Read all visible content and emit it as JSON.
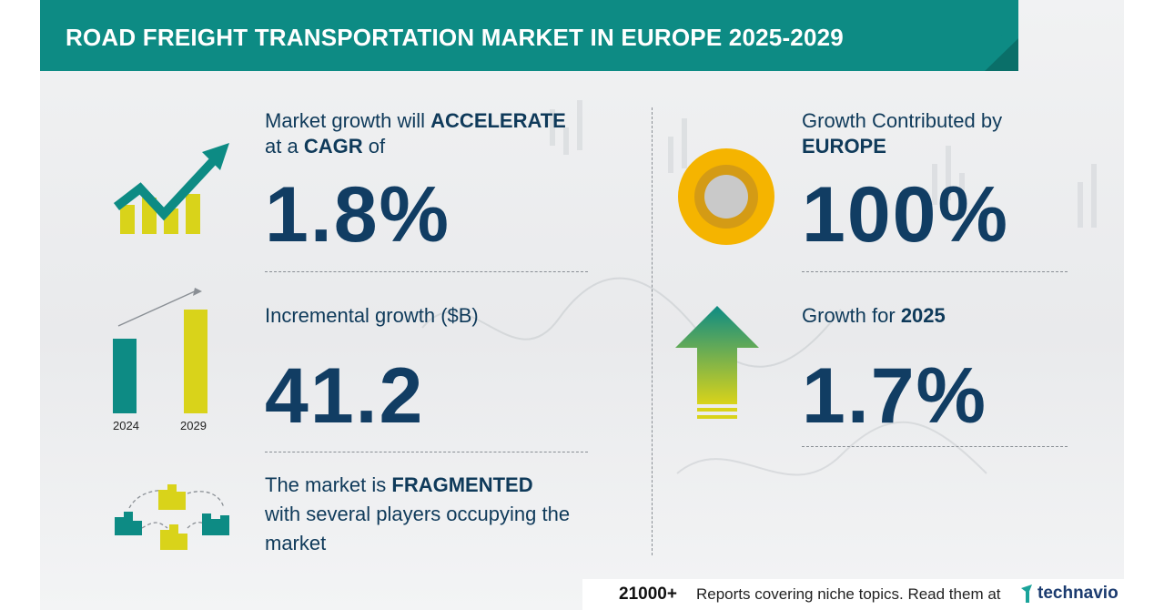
{
  "header": {
    "title": "ROAD FREIGHT TRANSPORTATION MARKET IN EUROPE 2025-2029"
  },
  "cagr": {
    "line1_pre": "Market growth will ",
    "line1_bold": "ACCELERATE",
    "line2_pre": "at a ",
    "line2_bold": "CAGR",
    "line2_post": "  of",
    "value": "1.8%"
  },
  "incremental": {
    "label": "Incremental growth ($B)",
    "value": "41.2",
    "year_start": "2024",
    "year_end": "2029"
  },
  "market": {
    "line1_pre": "The market is ",
    "line1_bold": "FRAGMENTED",
    "line2": "with several players occupying the",
    "line3": "market"
  },
  "region": {
    "label": "Growth Contributed by",
    "region_name": "EUROPE",
    "value": "100%"
  },
  "yoy": {
    "label_pre": "Growth for ",
    "year": "2025",
    "value": "1.7%"
  },
  "footer": {
    "count": "21000+",
    "text": "Reports covering niche topics. Read them at",
    "brand": "technavio"
  },
  "colors": {
    "teal": "#0d8b84",
    "yellow": "#d9d31a",
    "navy": "#113d63",
    "orange": "#f5b400"
  }
}
